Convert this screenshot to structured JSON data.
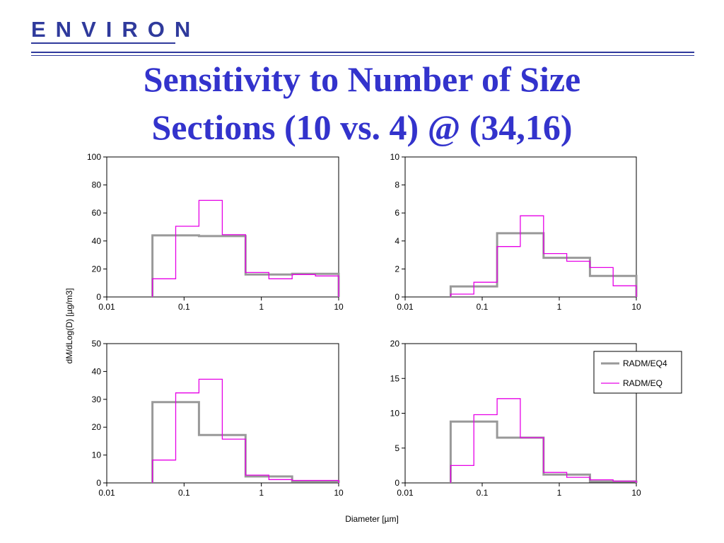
{
  "header": {
    "logo_text": "ENVIRON",
    "title_line1": "Sensitivity to Number of Size",
    "title_line2": "Sections (10 vs. 4) @ (34,16)"
  },
  "colors": {
    "brand": "#2f3a9c",
    "title": "#3333cc",
    "radm_eq4": "#999999",
    "radm_eq": "#e600e6"
  },
  "y_axis_label": "dM/dLog(D) [µg/m3]",
  "x_axis_label": "Diameter [µm]",
  "legend": {
    "placement": "top-right of bottom-right panel",
    "items": [
      "RADM/EQ4",
      "RADM/EQ"
    ]
  },
  "chart_data": [
    {
      "type": "line",
      "step": true,
      "x_scale": "log",
      "xlim": [
        0.01,
        10
      ],
      "ylim": [
        0,
        100
      ],
      "x_ticks": [
        "0.01",
        "0.1",
        "1",
        "10"
      ],
      "y_ticks": [
        "0",
        "20",
        "40",
        "60",
        "80",
        "100"
      ],
      "series": [
        {
          "name": "RADM/EQ4",
          "edges": [
            0.039,
            0.156,
            0.625,
            2.5,
            10
          ],
          "values": [
            44,
            43.5,
            16,
            16.5
          ]
        },
        {
          "name": "RADM/EQ",
          "edges": [
            0.039,
            0.078,
            0.156,
            0.312,
            0.625,
            1.25,
            2.5,
            5,
            10
          ],
          "values": [
            13,
            50.5,
            69,
            44.5,
            17.5,
            13,
            16,
            15
          ]
        }
      ]
    },
    {
      "type": "line",
      "step": true,
      "x_scale": "log",
      "xlim": [
        0.01,
        10
      ],
      "ylim": [
        0,
        10
      ],
      "x_ticks": [
        "0.01",
        "0.1",
        "1",
        "10"
      ],
      "y_ticks": [
        "0",
        "2",
        "4",
        "6",
        "8",
        "10"
      ],
      "series": [
        {
          "name": "RADM/EQ4",
          "edges": [
            0.039,
            0.156,
            0.625,
            2.5,
            10
          ],
          "values": [
            0.75,
            4.55,
            2.8,
            1.5
          ]
        },
        {
          "name": "RADM/EQ",
          "edges": [
            0.039,
            0.078,
            0.156,
            0.312,
            0.625,
            1.25,
            2.5,
            5,
            10
          ],
          "values": [
            0.2,
            1.05,
            3.6,
            5.8,
            3.1,
            2.55,
            2.1,
            0.8
          ]
        }
      ]
    },
    {
      "type": "line",
      "step": true,
      "x_scale": "log",
      "xlim": [
        0.01,
        10
      ],
      "ylim": [
        0,
        50
      ],
      "x_ticks": [
        "0.01",
        "0.1",
        "1",
        "10"
      ],
      "y_ticks": [
        "0",
        "10",
        "20",
        "30",
        "40",
        "50"
      ],
      "series": [
        {
          "name": "RADM/EQ4",
          "edges": [
            0.039,
            0.156,
            0.625,
            2.5,
            10
          ],
          "values": [
            29,
            17.2,
            2.3,
            0.6
          ]
        },
        {
          "name": "RADM/EQ",
          "edges": [
            0.039,
            0.078,
            0.156,
            0.312,
            0.625,
            1.25,
            2.5,
            5,
            10
          ],
          "values": [
            8.2,
            32.3,
            37.2,
            15.7,
            2.8,
            1.2,
            0.9,
            0.9
          ]
        }
      ]
    },
    {
      "type": "line",
      "step": true,
      "x_scale": "log",
      "xlim": [
        0.01,
        10
      ],
      "ylim": [
        0,
        20
      ],
      "x_ticks": [
        "0.01",
        "0.1",
        "1",
        "10"
      ],
      "y_ticks": [
        "0",
        "5",
        "10",
        "15",
        "20"
      ],
      "series": [
        {
          "name": "RADM/EQ4",
          "edges": [
            0.039,
            0.156,
            0.625,
            2.5,
            10
          ],
          "values": [
            8.8,
            6.5,
            1.2,
            0.2
          ]
        },
        {
          "name": "RADM/EQ",
          "edges": [
            0.039,
            0.078,
            0.156,
            0.312,
            0.625,
            1.25,
            2.5,
            5,
            10
          ],
          "values": [
            2.5,
            9.8,
            12.1,
            6.5,
            1.5,
            0.8,
            0.45,
            0.25
          ]
        }
      ]
    }
  ]
}
